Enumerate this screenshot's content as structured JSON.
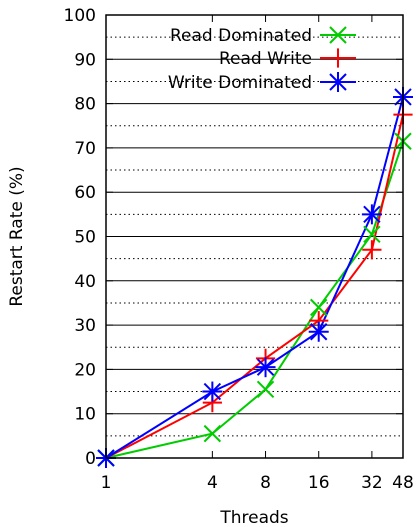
{
  "chart_data": {
    "type": "line",
    "xlabel": "Threads",
    "ylabel": "Restart Rate (%)",
    "x_scale": "log2",
    "categories": [
      "1",
      "4",
      "8",
      "16",
      "32",
      "48"
    ],
    "x": [
      1,
      4,
      8,
      16,
      32,
      48
    ],
    "ylim": [
      0,
      100
    ],
    "yticks": [
      0,
      10,
      20,
      30,
      40,
      50,
      60,
      70,
      80,
      90,
      100
    ],
    "grid": {
      "horizontal_solid_at": [
        10,
        20,
        30,
        40,
        50,
        60,
        70,
        80,
        90
      ],
      "horizontal_dotted_at": [
        5,
        15,
        25,
        35,
        45,
        55,
        65,
        75,
        85,
        95
      ]
    },
    "legend_position": "top-right",
    "series": [
      {
        "name": "Read Dominated",
        "color": "#00cc00",
        "marker": "x",
        "values": [
          0,
          5.5,
          15.5,
          34,
          50.5,
          71.5
        ]
      },
      {
        "name": "Read Write",
        "color": "#ff0000",
        "marker": "plus",
        "values": [
          0,
          12.5,
          22.5,
          31,
          47,
          77.5
        ]
      },
      {
        "name": "Write Dominated",
        "color": "#0000ff",
        "marker": "star",
        "values": [
          0,
          15,
          20.5,
          28.5,
          55,
          81.5
        ]
      }
    ]
  }
}
